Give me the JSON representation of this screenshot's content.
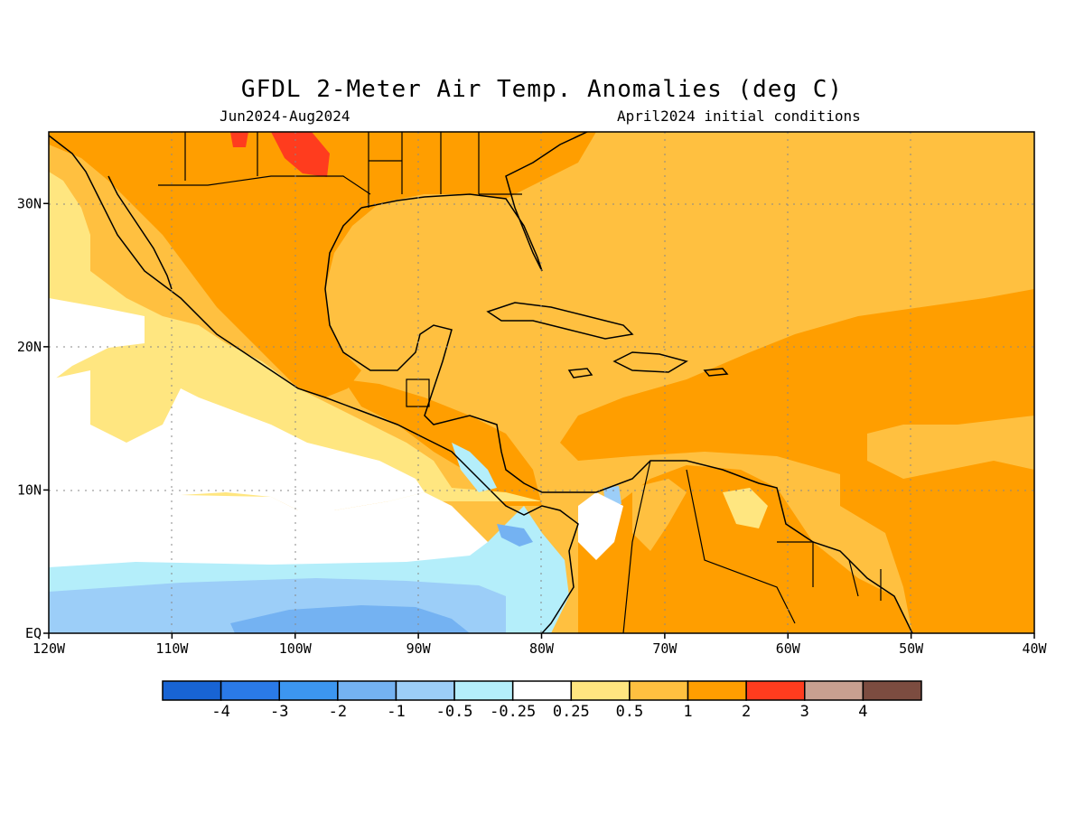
{
  "title": "GFDL 2-Meter Air Temp. Anomalies (deg C)",
  "subtitle_left": "Jun2024-Aug2024",
  "subtitle_right": "April2024 initial conditions",
  "map": {
    "lon_ticks": [
      "120W",
      "110W",
      "100W",
      "90W",
      "80W",
      "70W",
      "60W",
      "50W",
      "40W"
    ],
    "lat_ticks": [
      "EQ",
      "10N",
      "20N",
      "30N"
    ],
    "extent": {
      "lon_min": -120,
      "lon_max": -40,
      "lat_min": 0,
      "lat_max": 35
    },
    "grid": true
  },
  "colorbar": {
    "colors": [
      "#1864d4",
      "#2a7ae8",
      "#3c96f0",
      "#74b2f2",
      "#9ccef8",
      "#b4eefa",
      "#ffffff",
      "#ffe680",
      "#ffc040",
      "#ff9e00",
      "#ff3c1e",
      "#c8a090",
      "#7c4c40"
    ],
    "labels": [
      "-4",
      "-3",
      "-2",
      "-1",
      "-0.5",
      "-0.25",
      "0.25",
      "0.5",
      "1",
      "2",
      "3",
      "4"
    ]
  },
  "colors": {
    "orange": "#ff9e00",
    "light_orange": "#ffc040",
    "yellow": "#ffe680",
    "white": "#ffffff",
    "light_cyan": "#b4eefa",
    "light_blue": "#9ccef8",
    "mid_blue": "#74b2f2",
    "red": "#ff3c1e"
  }
}
